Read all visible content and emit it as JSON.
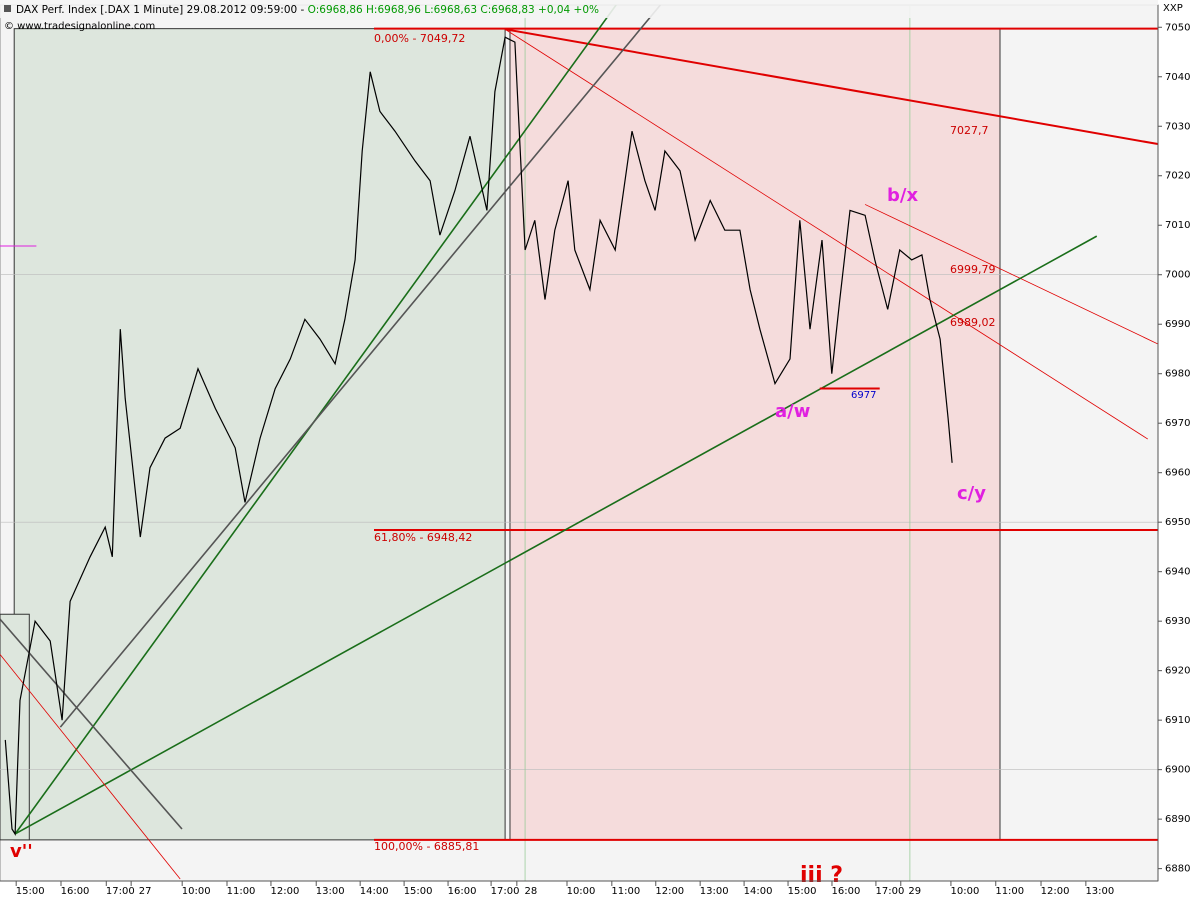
{
  "chart_data": {
    "type": "line",
    "title_parts": [
      "DAX Perf. Index [.DAX  1 Minute] 29.08.2012 09:59:00 - ",
      "O:6968,86",
      " H:6968,96",
      " L:6968,63",
      " C:6968,83 +0,04 +0%"
    ],
    "copyright": "© www.tradesignalonline.com",
    "symbol": "XXP",
    "xlim": [
      -0.68,
      25.41
    ],
    "ylim": [
      6877.5,
      7054.5
    ],
    "yticks": [
      6880,
      6890,
      6900,
      6910,
      6920,
      6930,
      6940,
      6950,
      6960,
      6970,
      6980,
      6990,
      7000,
      7010,
      7020,
      7030,
      7040,
      7050
    ],
    "xticks": [
      {
        "value": 0,
        "label": "15:00"
      },
      {
        "value": 1.01,
        "label": "16:00"
      },
      {
        "value": 2.03,
        "label": "17:00"
      },
      {
        "value": 2.59,
        "label": "27"
      },
      {
        "value": 3.74,
        "label": "10:00"
      },
      {
        "value": 4.75,
        "label": "11:00"
      },
      {
        "value": 5.74,
        "label": "12:00"
      },
      {
        "value": 6.76,
        "label": "13:00"
      },
      {
        "value": 7.75,
        "label": "14:00"
      },
      {
        "value": 8.74,
        "label": "15:00"
      },
      {
        "value": 9.73,
        "label": "16:00"
      },
      {
        "value": 10.7,
        "label": "17:00"
      },
      {
        "value": 11.28,
        "label": "28"
      },
      {
        "value": 12.41,
        "label": "10:00"
      },
      {
        "value": 13.42,
        "label": "11:00"
      },
      {
        "value": 14.41,
        "label": "12:00"
      },
      {
        "value": 15.41,
        "label": "13:00"
      },
      {
        "value": 16.4,
        "label": "14:00"
      },
      {
        "value": 17.39,
        "label": "15:00"
      },
      {
        "value": 18.38,
        "label": "16:00"
      },
      {
        "value": 19.37,
        "label": "17:00"
      },
      {
        "value": 19.93,
        "label": "29"
      },
      {
        "value": 21.06,
        "label": "10:00"
      },
      {
        "value": 22.07,
        "label": "11:00"
      },
      {
        "value": 23.09,
        "label": "12:00"
      },
      {
        "value": 24.1,
        "label": "13:00"
      }
    ],
    "ygrid": [
      6900,
      6950,
      7000
    ],
    "xgrid": [
      11.15,
      19.82
    ],
    "zones": [
      {
        "color": "#dde6dd",
        "x": [
          -0.36,
          10.7
        ],
        "y": [
          6885.81,
          7049.72
        ]
      },
      {
        "color": "#f5dcdc",
        "x": [
          10.81,
          21.85
        ],
        "y": [
          6885.81,
          7049.72
        ]
      },
      {
        "color": "#dde6dd",
        "x": [
          -0.68,
          -0.02
        ],
        "y": [
          6885.81,
          6931.4
        ]
      }
    ],
    "fib_levels": [
      {
        "value": 7049.72,
        "label": "0,00% - 7049,72"
      },
      {
        "value": 6948.42,
        "label": "61,80% - 6948,42"
      },
      {
        "value": 6885.81,
        "label": "100,00% - 6885,81"
      }
    ],
    "fib_color": "#e00000",
    "trendlines": [
      {
        "color": "#e00000",
        "width": 2,
        "x": [
          10.7,
          25.41
        ],
        "y": [
          7049.6,
          7026.4
        ]
      },
      {
        "color": "#e00000",
        "width": 0.8,
        "x": [
          10.7,
          25.18
        ],
        "y": [
          7049.6,
          6966.8
        ]
      },
      {
        "color": "#e00000",
        "width": 0.8,
        "x": [
          18.81,
          25.41
        ],
        "y": [
          7014.2,
          6986
        ]
      },
      {
        "color": "#1a6e1a",
        "width": 1.6,
        "x": [
          -0.34,
          24.03
        ],
        "y": [
          6887,
          7007.8
        ]
      },
      {
        "color": "#1a6e1a",
        "width": 1.6,
        "x": [
          -0.34,
          13.29
        ],
        "y": [
          6887,
          7055.6
        ]
      },
      {
        "color": "#555555",
        "width": 1.6,
        "x": [
          0.68,
          14.3
        ],
        "y": [
          6908.6,
          7055.6
        ]
      },
      {
        "color": "#555555",
        "width": 1.6,
        "x": [
          -0.68,
          3.42
        ],
        "y": [
          6930.4,
          6888
        ]
      },
      {
        "color": "#e00000",
        "width": 0.8,
        "x": [
          -0.68,
          3.38
        ],
        "y": [
          6923.3,
          6877.9
        ]
      },
      {
        "color": "#e00000",
        "width": 2,
        "x": [
          17.79,
          19.14
        ],
        "y": [
          6977,
          6977
        ]
      },
      {
        "color": "#e020e0",
        "width": 1,
        "x": [
          -0.68,
          0.14
        ],
        "y": [
          7005.8,
          7005.8
        ]
      }
    ],
    "annotations": [
      "7027,7",
      "6999,79",
      "6989,02",
      "6977",
      "b/x",
      "a/w",
      "c/y",
      "v''",
      "iii ?"
    ],
    "series": [
      {
        "name": "DAX",
        "color": "#000000",
        "x": [
          -0.56,
          -0.41,
          -0.34,
          -0.23,
          0.11,
          0.45,
          0.72,
          0.9,
          1.35,
          1.69,
          1.85,
          2.03,
          2.14,
          2.48,
          2.7,
          3.04,
          3.38,
          3.78,
          4.17,
          4.62,
          4.84,
          5.18,
          5.52,
          5.86,
          6.19,
          6.53,
          6.87,
          7.09,
          7.32,
          7.48,
          7.66,
          7.88,
          8.22,
          8.67,
          9.01,
          9.23,
          9.57,
          9.91,
          10.29,
          10.47,
          10.7,
          10.92,
          11.15,
          11.37,
          11.6,
          11.82,
          12.12,
          12.27,
          12.61,
          12.84,
          13.18,
          13.56,
          13.85,
          14.08,
          14.3,
          14.64,
          14.98,
          15.32,
          15.65,
          15.99,
          16.22,
          16.44,
          16.78,
          17.12,
          17.34,
          17.57,
          17.84,
          18.06,
          18.24,
          18.47,
          18.81,
          19.03,
          19.32,
          19.59,
          19.86,
          20.09,
          20.27,
          20.5,
          20.68,
          20.77
        ],
        "values": [
          6906,
          6888,
          6887,
          6914,
          6930,
          6926,
          6910,
          6934,
          6943,
          6949,
          6943,
          6989,
          6975,
          6947,
          6961,
          6967,
          6969,
          6981,
          6973,
          6965,
          6954,
          6967,
          6977,
          6983,
          6991,
          6987,
          6982,
          6991,
          7003,
          7025,
          7041,
          7033,
          7029,
          7023,
          7019,
          7008,
          7017,
          7028,
          7013,
          7037,
          7048,
          7047,
          7005,
          7011,
          6995,
          7009,
          7019,
          7005,
          6997,
          7011,
          7005,
          7029,
          7019,
          7013,
          7025,
          7021,
          7007,
          7015,
          7009,
          7009,
          6997,
          6989,
          6978,
          6983,
          7011,
          6989,
          7007,
          6980,
          6995,
          7013,
          7012,
          7003,
          6993,
          7005,
          7003,
          7004,
          6995,
          6987,
          6971,
          6962
        ]
      }
    ]
  }
}
